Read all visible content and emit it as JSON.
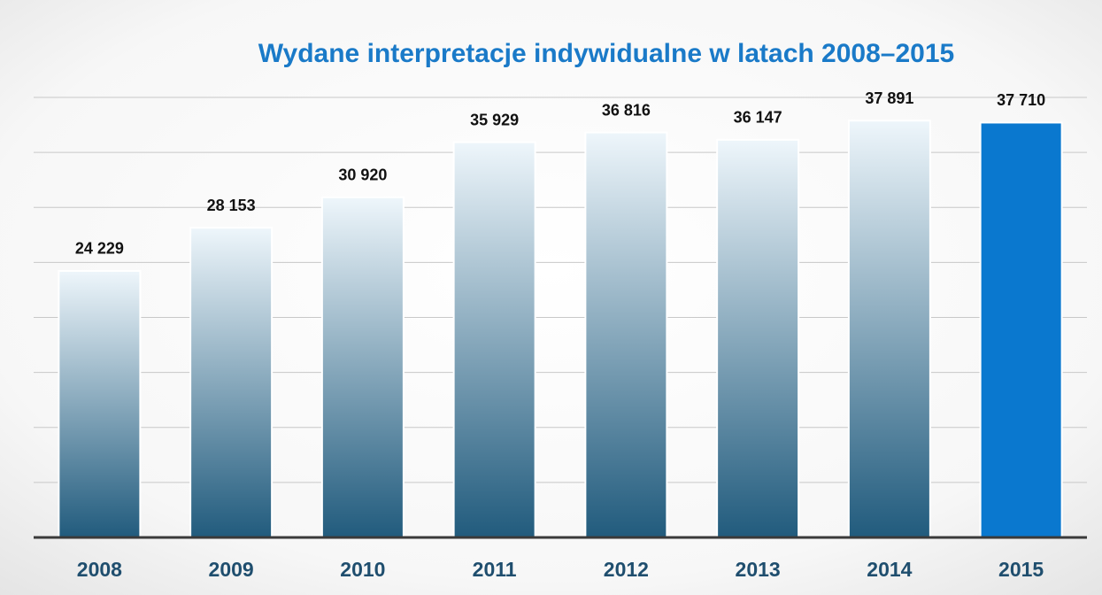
{
  "chart_data": {
    "type": "bar",
    "title": "Wydane interpretacje indywidualne w latach 2008–2015",
    "categories": [
      "2008",
      "2009",
      "2010",
      "2011",
      "2012",
      "2013",
      "2014",
      "2015"
    ],
    "values": [
      24229,
      28153,
      30920,
      35929,
      36816,
      36147,
      37891,
      37710
    ],
    "value_labels": [
      "24 229",
      "28 153",
      "30 920",
      "35 929",
      "36 816",
      "36 147",
      "37 891",
      "37 710"
    ],
    "colors": [
      "#215b7d",
      "#215b7d",
      "#215b7d",
      "#215b7d",
      "#215b7d",
      "#215b7d",
      "#215b7d",
      "#0a78cf"
    ],
    "gradient": [
      true,
      true,
      true,
      true,
      true,
      true,
      true,
      false
    ],
    "gradient_top": "#eef6fb",
    "ylim": [
      0,
      40000
    ],
    "yticks": [
      5000,
      10000,
      15000,
      20000,
      25000,
      30000,
      35000,
      40000
    ],
    "grid": true
  }
}
